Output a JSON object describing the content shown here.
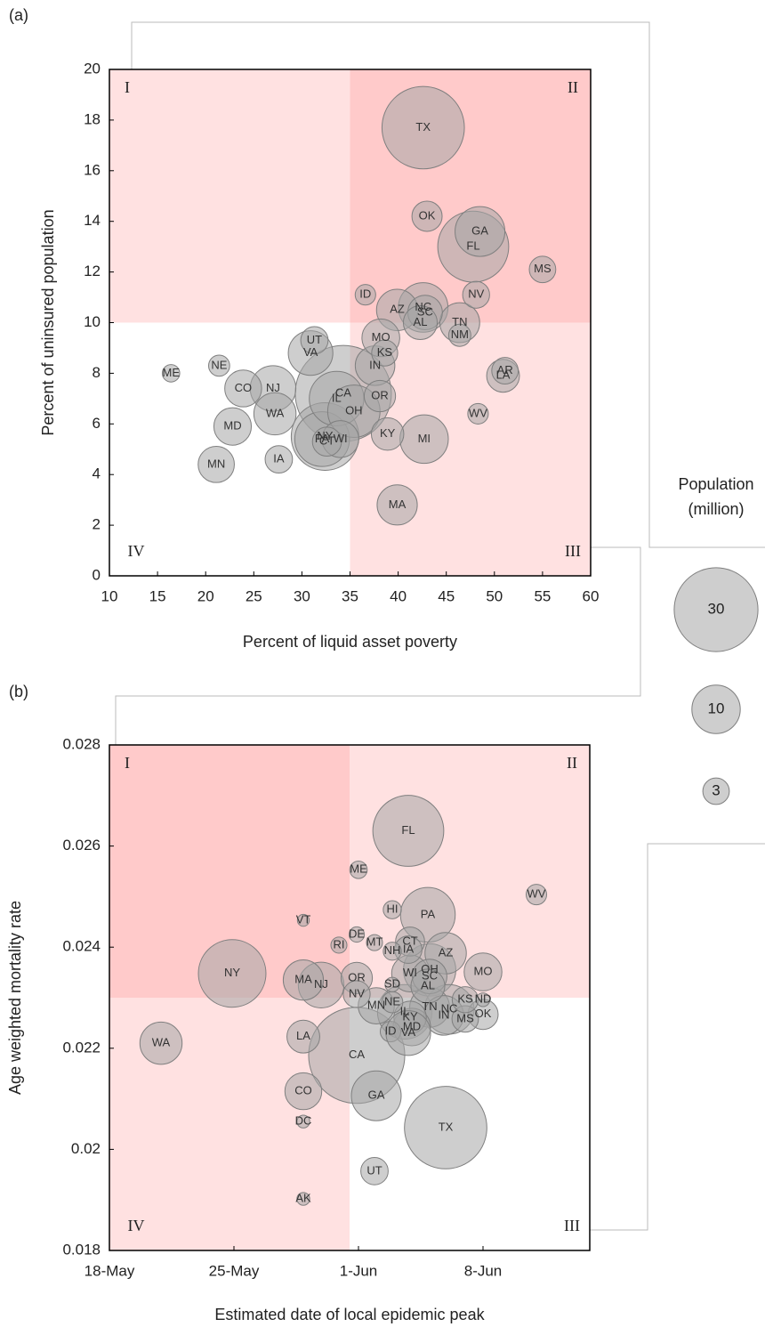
{
  "chart_data": [
    {
      "type": "bubble",
      "panel_label": "(a)",
      "xlabel": "Percent of liquid asset poverty",
      "ylabel": "Percent of uninsured population",
      "xlim": [
        10,
        60
      ],
      "ylim": [
        0,
        20
      ],
      "xticks": [
        10,
        15,
        20,
        25,
        30,
        35,
        40,
        45,
        50,
        55,
        60
      ],
      "yticks": [
        0,
        2,
        4,
        6,
        8,
        10,
        12,
        14,
        16,
        18,
        20
      ],
      "quadrant_split": {
        "x": 35,
        "y": 10
      },
      "quadrant_labels": [
        "I",
        "II",
        "III",
        "IV"
      ],
      "quadrant_colors": [
        "#ffe1e1",
        "#ffcaca",
        "#ffe1e1",
        "#ffffff"
      ],
      "color": "#a6a6a6",
      "labels": [
        "CA",
        "TX",
        "FL",
        "NY",
        "PA",
        "IL",
        "OH",
        "GA",
        "NC",
        "MI",
        "NJ",
        "VA",
        "WA",
        "AZ",
        "MA",
        "TN",
        "IN",
        "MO",
        "MD",
        "WI",
        "CO",
        "MN",
        "SC",
        "AL",
        "LA",
        "KY",
        "OR",
        "OK",
        "CT",
        "UT",
        "IA",
        "NV",
        "AR",
        "MS",
        "KS",
        "NM",
        "NE",
        "WV",
        "ID",
        "ME"
      ],
      "x": [
        34.3,
        42.6,
        47.8,
        32.4,
        32.1,
        33.6,
        35.4,
        48.5,
        42.6,
        42.7,
        27.0,
        30.9,
        27.2,
        39.9,
        39.9,
        46.4,
        37.6,
        38.2,
        22.8,
        34.0,
        23.9,
        21.1,
        42.8,
        42.3,
        50.9,
        38.9,
        38.1,
        43.0,
        32.6,
        31.3,
        27.6,
        48.1,
        51.1,
        55.0,
        38.6,
        46.4,
        21.4,
        48.3,
        36.6,
        16.4
      ],
      "y": [
        7.2,
        17.7,
        13.0,
        5.5,
        5.4,
        7.0,
        6.5,
        13.6,
        10.6,
        5.4,
        7.4,
        8.8,
        6.4,
        10.5,
        2.8,
        10.0,
        8.3,
        9.4,
        5.9,
        5.4,
        7.4,
        4.4,
        10.4,
        10.0,
        7.9,
        5.6,
        7.1,
        14.2,
        5.3,
        9.3,
        4.6,
        11.1,
        8.1,
        12.1,
        8.8,
        9.5,
        8.3,
        6.4,
        11.1,
        8.0
      ],
      "sizes": [
        39.5,
        29.0,
        21.5,
        19.5,
        12.8,
        12.7,
        11.7,
        10.6,
        10.5,
        10.0,
        8.9,
        8.5,
        7.6,
        7.3,
        6.9,
        6.8,
        6.7,
        6.1,
        6.0,
        5.8,
        5.8,
        5.6,
        5.1,
        4.9,
        4.6,
        4.5,
        4.2,
        3.9,
        3.6,
        3.2,
        3.2,
        3.1,
        3.0,
        3.0,
        2.9,
        2.1,
        1.9,
        1.8,
        1.8,
        1.3
      ]
    },
    {
      "type": "bubble",
      "panel_label": "(b)",
      "xlabel": "Estimated date of local epidemic peak",
      "ylabel": "Age weighted mortality rate",
      "xlim": [
        0,
        27
      ],
      "ylim": [
        0.018,
        0.028
      ],
      "xticks": [
        {
          "value": 0,
          "label": "18-May"
        },
        {
          "value": 7,
          "label": "25-May"
        },
        {
          "value": 14,
          "label": "1-Jun"
        },
        {
          "value": 21,
          "label": "8-Jun"
        }
      ],
      "yticks": [
        0.018,
        0.02,
        0.022,
        0.024,
        0.026,
        0.028
      ],
      "quadrant_split": {
        "x": 13.5,
        "y": 0.023
      },
      "quadrant_labels": [
        "I",
        "II",
        "III",
        "IV"
      ],
      "quadrant_colors": [
        "#ffcaca",
        "#ffe1e1",
        "#ffffff",
        "#ffe1e1"
      ],
      "color": "#a6a6a6",
      "labels": [
        "CA",
        "TX",
        "FL",
        "NY",
        "PA",
        "IL",
        "OH",
        "GA",
        "NC",
        "NJ",
        "WA",
        "AZ",
        "MA",
        "TN",
        "IN",
        "MO",
        "MD",
        "WI",
        "CO",
        "MN",
        "SC",
        "AL",
        "LA",
        "KY",
        "OR",
        "OK",
        "CT",
        "UT",
        "IA",
        "NV",
        "MS",
        "KS",
        "NE",
        "WV",
        "ID",
        "HI",
        "NH",
        "ME",
        "MT",
        "RI",
        "DE",
        "SD",
        "ND",
        "AK",
        "DC",
        "VT",
        "VA"
      ],
      "x": [
        13.9,
        18.9,
        16.8,
        6.9,
        17.9,
        16.6,
        18.0,
        15.0,
        19.1,
        11.9,
        2.9,
        18.9,
        10.9,
        18.0,
        18.8,
        21.0,
        17.0,
        16.9,
        10.9,
        15.0,
        18.0,
        17.9,
        10.9,
        16.9,
        13.9,
        21.0,
        16.9,
        14.9,
        16.8,
        13.9,
        20.0,
        20.0,
        15.9,
        24.0,
        15.8,
        15.9,
        15.9,
        14.0,
        14.9,
        12.9,
        13.9,
        15.9,
        21.0,
        10.9,
        10.9,
        10.9,
        16.8
      ],
      "y": [
        0.02186,
        0.02043,
        0.0263,
        0.02348,
        0.02464,
        0.02272,
        0.02355,
        0.02106,
        0.02277,
        0.02325,
        0.0221,
        0.02388,
        0.02335,
        0.02281,
        0.02265,
        0.02351,
        0.02242,
        0.02348,
        0.02115,
        0.02284,
        0.02342,
        0.02323,
        0.02223,
        0.02261,
        0.02339,
        0.02267,
        0.02411,
        0.01957,
        0.02395,
        0.02307,
        0.02258,
        0.02296,
        0.02291,
        0.02504,
        0.02233,
        0.02474,
        0.02392,
        0.02553,
        0.02409,
        0.02404,
        0.02425,
        0.02326,
        0.02296,
        0.01902,
        0.02055,
        0.02453,
        0.0223
      ],
      "sizes": [
        39.5,
        29.0,
        21.5,
        19.5,
        12.8,
        12.7,
        11.7,
        10.6,
        10.5,
        8.9,
        7.6,
        7.3,
        6.9,
        6.8,
        6.7,
        6.1,
        6.0,
        5.8,
        5.8,
        5.6,
        5.1,
        4.9,
        4.6,
        4.5,
        4.2,
        3.9,
        3.6,
        3.2,
        3.2,
        3.1,
        3.0,
        2.9,
        1.9,
        1.8,
        1.8,
        1.4,
        1.4,
        1.3,
        1.1,
        1.1,
        1.0,
        0.9,
        0.8,
        0.7,
        0.7,
        0.6,
        8.5
      ]
    }
  ],
  "size_legend": {
    "title_lines": [
      "Population",
      "(million)"
    ],
    "values": [
      30,
      10,
      3
    ]
  }
}
